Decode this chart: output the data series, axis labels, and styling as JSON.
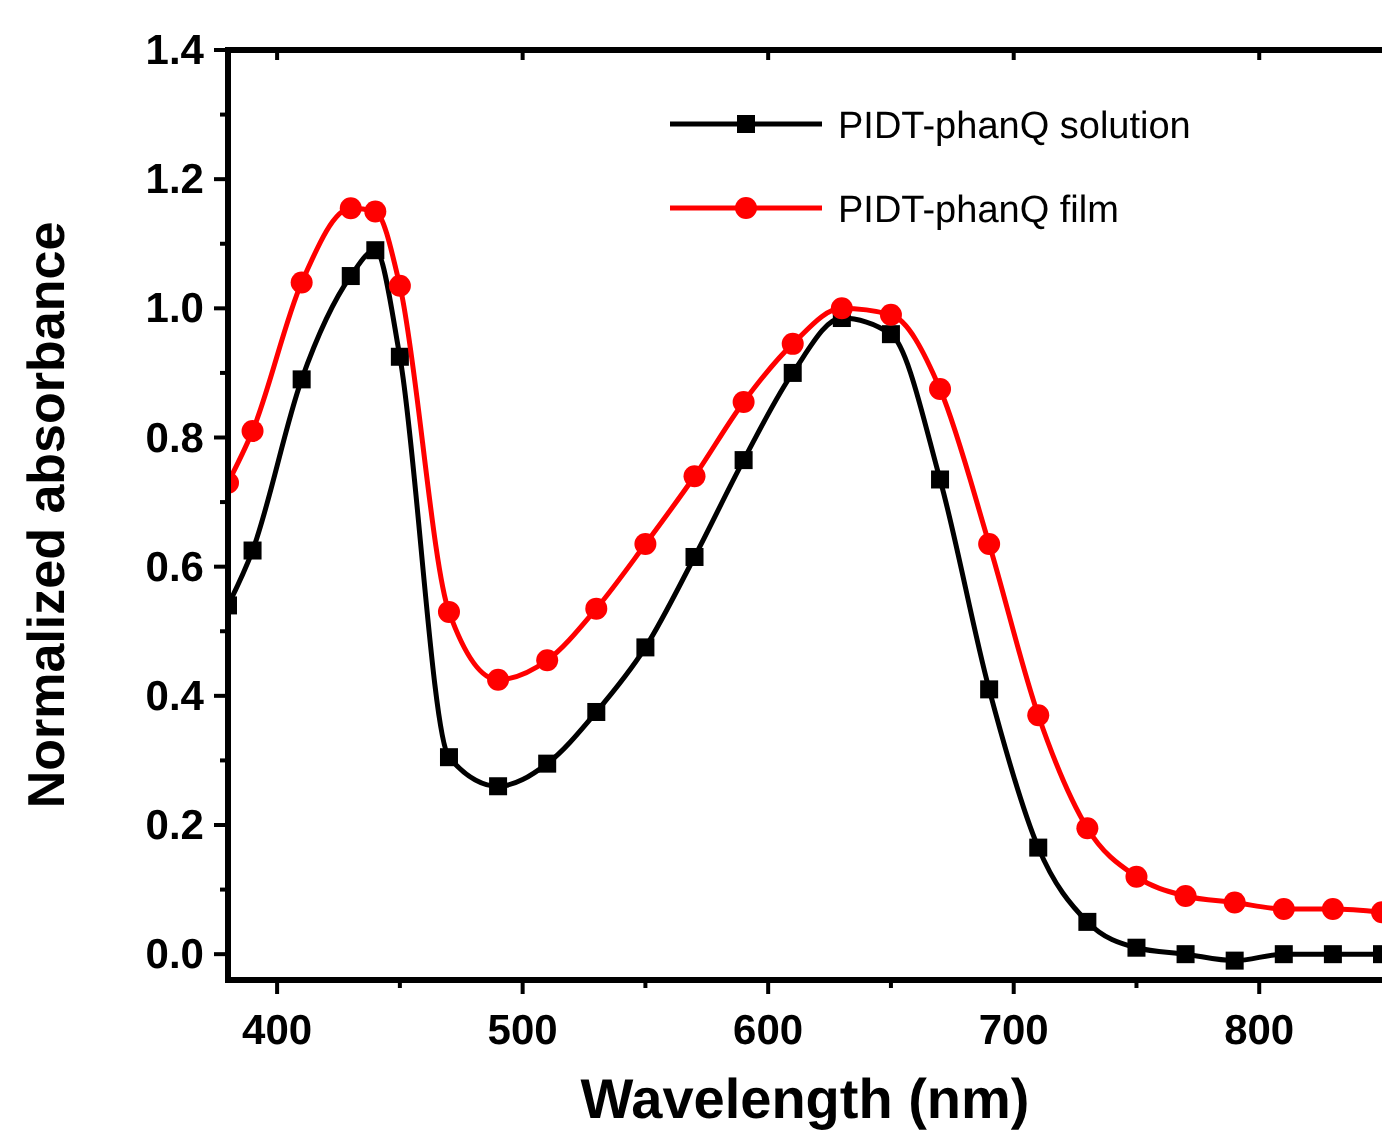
{
  "chart_data": {
    "type": "line",
    "xlabel": "Wavelength (nm)",
    "ylabel": "Normalized absorbance",
    "xlim": [
      380,
      850
    ],
    "xticks": [
      400,
      500,
      600,
      700,
      800
    ],
    "ylim": [
      -0.04,
      1.4
    ],
    "yticks": [
      {
        "value": 0,
        "label": "0.0"
      },
      {
        "value": 0.2,
        "label": "0.2"
      },
      {
        "value": 0.4,
        "label": "0.4"
      },
      {
        "value": 0.6,
        "label": "0.6"
      },
      {
        "value": 0.8,
        "label": "0.8"
      },
      {
        "value": 1,
        "label": "1.0"
      },
      {
        "value": 1.2,
        "label": "1.2"
      },
      {
        "value": 1.4,
        "label": "1.4"
      }
    ],
    "legend": "top right",
    "grid": false,
    "series": [
      {
        "name": "PIDT-phanQ solution",
        "color": "#000000",
        "marker": "square",
        "x": [
          380,
          390,
          410,
          430,
          440,
          450,
          470,
          490,
          510,
          530,
          550,
          570,
          590,
          610,
          630,
          650,
          670,
          690,
          710,
          730,
          750,
          770,
          790,
          810,
          830,
          850
        ],
        "values": [
          0.54,
          0.625,
          0.89,
          1.05,
          1.09,
          0.925,
          0.305,
          0.26,
          0.295,
          0.375,
          0.475,
          0.615,
          0.765,
          0.9,
          0.985,
          0.96,
          0.735,
          0.41,
          0.165,
          0.05,
          0.01,
          0.0,
          -0.01,
          0.0,
          0.0,
          0.0
        ]
      },
      {
        "name": "PIDT-phanQ film",
        "color": "#ff0000",
        "marker": "circle",
        "x": [
          380,
          390,
          410,
          430,
          440,
          450,
          470,
          490,
          510,
          530,
          550,
          570,
          590,
          610,
          630,
          650,
          670,
          690,
          710,
          730,
          750,
          770,
          790,
          810,
          830,
          850
        ],
        "values": [
          0.73,
          0.81,
          1.04,
          1.155,
          1.15,
          1.035,
          0.53,
          0.425,
          0.455,
          0.535,
          0.635,
          0.74,
          0.855,
          0.945,
          1.0,
          0.99,
          0.875,
          0.635,
          0.37,
          0.195,
          0.12,
          0.09,
          0.08,
          0.07,
          0.07,
          0.065
        ]
      }
    ]
  }
}
